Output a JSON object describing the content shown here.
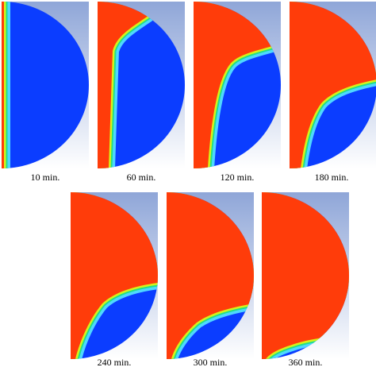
{
  "panels": [
    {
      "label": "10 min."
    },
    {
      "label": "60 min."
    },
    {
      "label": "120 min."
    },
    {
      "label": "180 min."
    },
    {
      "label": "240 min."
    },
    {
      "label": "300 min."
    },
    {
      "label": "360 min."
    }
  ]
}
